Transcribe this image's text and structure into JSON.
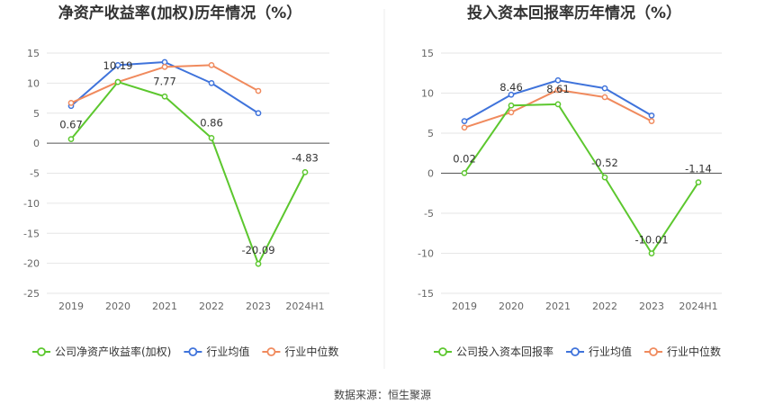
{
  "source_text": "数据来源：恒生聚源",
  "chart_data": [
    {
      "type": "line",
      "title": "净资产收益率(加权)历年情况（%）",
      "categories": [
        "2019",
        "2020",
        "2021",
        "2022",
        "2023",
        "2024H1"
      ],
      "ylim": [
        -25,
        15
      ],
      "yticks": [
        15,
        10,
        5,
        0,
        -5,
        -10,
        -15,
        -20,
        -25
      ],
      "grid": true,
      "legend_position": "bottom",
      "series": [
        {
          "name": "公司净资产收益率(加权)",
          "color": "#5cc72e",
          "values": [
            0.67,
            10.19,
            7.77,
            0.86,
            -20.09,
            -4.83
          ],
          "labels": [
            "0.67",
            "10.19",
            "7.77",
            "0.86",
            "-20.09",
            "-4.83"
          ]
        },
        {
          "name": "行业均值",
          "color": "#3f73db",
          "values": [
            6.2,
            13.0,
            13.5,
            10.0,
            5.0,
            null
          ]
        },
        {
          "name": "行业中位数",
          "color": "#f08a5d",
          "values": [
            6.7,
            10.2,
            12.7,
            13.0,
            8.7,
            null
          ]
        }
      ]
    },
    {
      "type": "line",
      "title": "投入资本回报率历年情况（%）",
      "categories": [
        "2019",
        "2020",
        "2021",
        "2022",
        "2023",
        "2024H1"
      ],
      "ylim": [
        -15,
        15
      ],
      "yticks": [
        15,
        10,
        5,
        0,
        -5,
        -10,
        -15
      ],
      "grid": true,
      "legend_position": "bottom",
      "series": [
        {
          "name": "公司投入资本回报率",
          "color": "#5cc72e",
          "values": [
            0.02,
            8.46,
            8.61,
            -0.52,
            -10.01,
            -1.14
          ],
          "labels": [
            "0.02",
            "8.46",
            "8.61",
            "-0.52",
            "-10.01",
            "-1.14"
          ]
        },
        {
          "name": "行业均值",
          "color": "#3f73db",
          "values": [
            6.5,
            9.8,
            11.6,
            10.6,
            7.2,
            null
          ]
        },
        {
          "name": "行业中位数",
          "color": "#f08a5d",
          "values": [
            5.7,
            7.6,
            10.4,
            9.5,
            6.5,
            null
          ]
        }
      ]
    }
  ]
}
